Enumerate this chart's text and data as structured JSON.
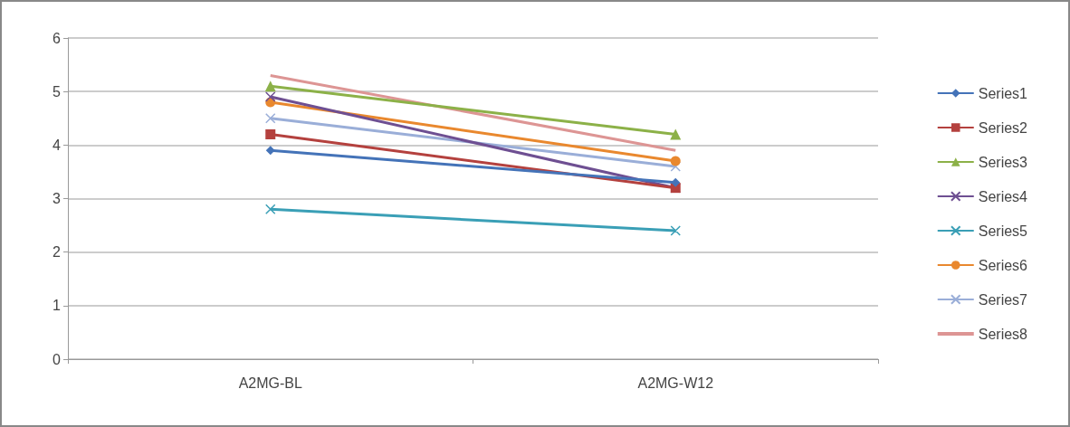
{
  "chart_data": {
    "type": "line",
    "categories": [
      "A2MG-BL",
      "A2MG-W12"
    ],
    "series": [
      {
        "name": "Series1",
        "color": "#4473b8",
        "marker": "diamond",
        "values": [
          3.9,
          3.3
        ]
      },
      {
        "name": "Series2",
        "color": "#b4413e",
        "marker": "square",
        "values": [
          4.2,
          3.2
        ]
      },
      {
        "name": "Series3",
        "color": "#8cb148",
        "marker": "triangle",
        "values": [
          5.1,
          4.2
        ]
      },
      {
        "name": "Series4",
        "color": "#6e4f92",
        "marker": "cross",
        "values": [
          4.9,
          3.2
        ]
      },
      {
        "name": "Series5",
        "color": "#3a9fb6",
        "marker": "cross",
        "values": [
          2.8,
          2.4
        ]
      },
      {
        "name": "Series6",
        "color": "#e9882e",
        "marker": "circle",
        "values": [
          4.8,
          3.7
        ]
      },
      {
        "name": "Series7",
        "color": "#9aaed8",
        "marker": "cross",
        "values": [
          4.5,
          3.6
        ]
      },
      {
        "name": "Series8",
        "color": "#dd9594",
        "marker": "none",
        "values": [
          5.3,
          3.9
        ]
      }
    ],
    "ylim": [
      0,
      6
    ],
    "yticks": [
      0,
      1,
      2,
      3,
      4,
      5,
      6
    ],
    "grid": "y",
    "legend": "right"
  }
}
